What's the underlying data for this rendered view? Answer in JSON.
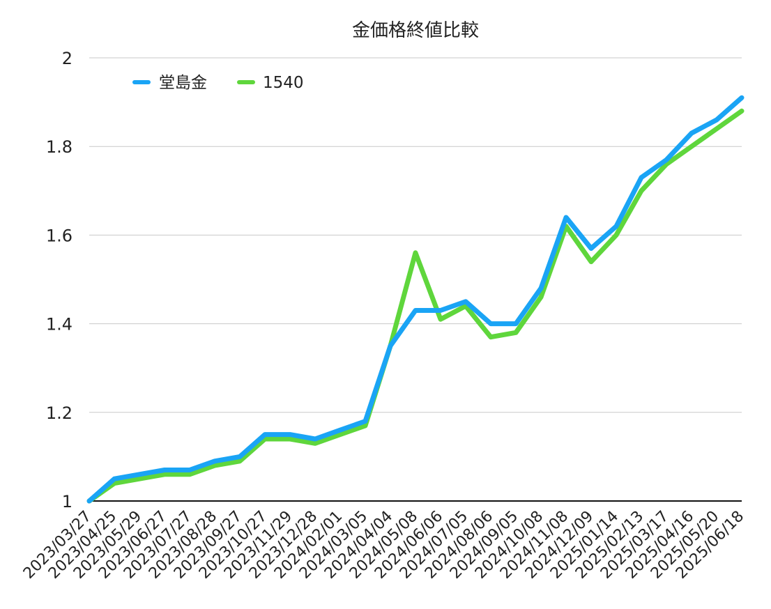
{
  "chart_data": {
    "type": "line",
    "title": "金価格終値比較",
    "xlabel": "",
    "ylabel": "",
    "ylim": [
      1,
      2
    ],
    "yticks": [
      "1",
      "1.2",
      "1.4",
      "1.6",
      "1.8",
      "2"
    ],
    "grid": true,
    "legend_position": "top-left",
    "categories": [
      "2023/03/27",
      "2023/04/25",
      "2023/05/29",
      "2023/06/27",
      "2023/07/27",
      "2023/08/28",
      "2023/09/27",
      "2023/10/27",
      "2023/11/29",
      "2023/12/28",
      "2024/02/01",
      "2024/03/05",
      "2024/04/04",
      "2024/05/08",
      "2024/06/06",
      "2024/07/05",
      "2024/08/06",
      "2024/09/05",
      "2024/10/08",
      "2024/11/08",
      "2024/12/09",
      "2025/01/14",
      "2025/02/13",
      "2025/03/17",
      "2025/04/16",
      "2025/05/20",
      "2025/06/18"
    ],
    "series": [
      {
        "name": "堂島金",
        "color": "#1aa4f5",
        "values": [
          1.0,
          1.05,
          1.06,
          1.07,
          1.07,
          1.09,
          1.1,
          1.15,
          1.15,
          1.14,
          1.16,
          1.18,
          1.35,
          1.43,
          1.43,
          1.45,
          1.4,
          1.4,
          1.48,
          1.64,
          1.57,
          1.62,
          1.73,
          1.77,
          1.83,
          1.86,
          1.91
        ]
      },
      {
        "name": "1540",
        "color": "#5fd63c",
        "values": [
          1.0,
          1.04,
          1.05,
          1.06,
          1.06,
          1.08,
          1.09,
          1.14,
          1.14,
          1.13,
          1.15,
          1.17,
          1.35,
          1.56,
          1.41,
          1.44,
          1.37,
          1.38,
          1.46,
          1.62,
          1.54,
          1.6,
          1.7,
          1.76,
          1.8,
          1.84,
          1.88
        ]
      }
    ]
  }
}
